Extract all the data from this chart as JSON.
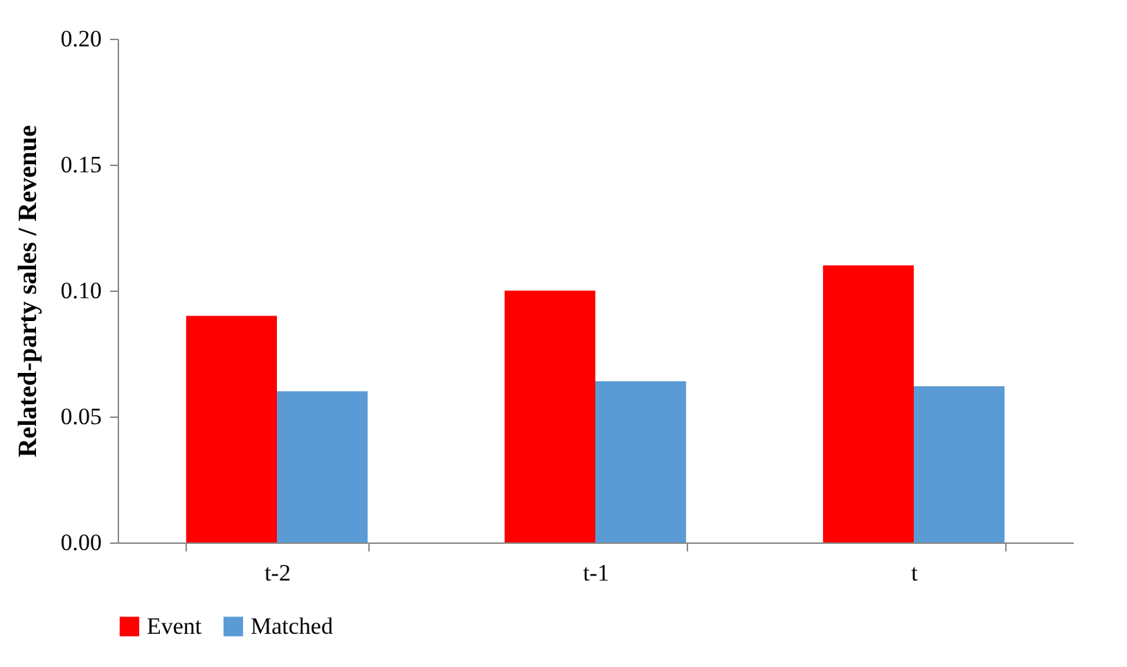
{
  "chart_data": {
    "type": "bar",
    "ylabel": "Related-party sales / Revenue",
    "categories": [
      "t-2",
      "t-1",
      "t"
    ],
    "series": [
      {
        "name": "Event",
        "color": "#ff0000",
        "values": [
          0.09,
          0.1,
          0.11
        ]
      },
      {
        "name": "Matched",
        "color": "#5b9bd5",
        "values": [
          0.06,
          0.064,
          0.062
        ]
      }
    ],
    "ylim": [
      0,
      0.2
    ],
    "yticks": [
      {
        "value": 0,
        "label": "0.00"
      },
      {
        "value": 0.05,
        "label": "0.05"
      },
      {
        "value": 0.1,
        "label": "0.10"
      },
      {
        "value": 0.15,
        "label": "0.15"
      },
      {
        "value": 0.2,
        "label": "0.20"
      }
    ],
    "grid": false,
    "legend": "bottom"
  }
}
